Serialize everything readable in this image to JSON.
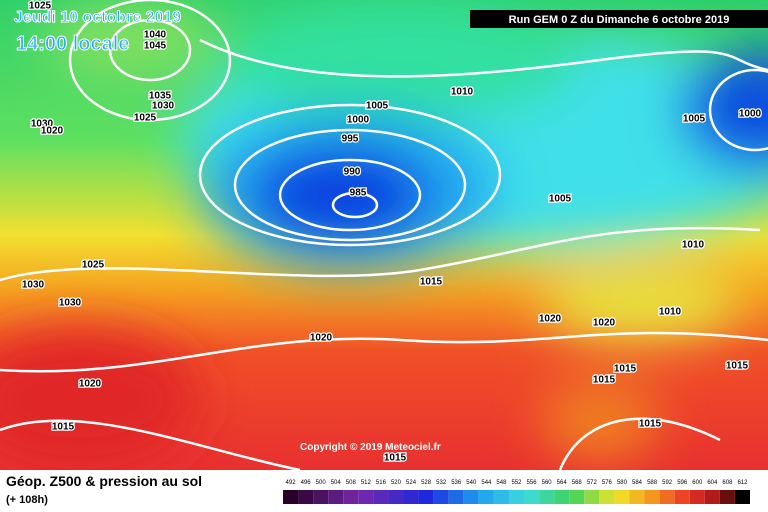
{
  "header": {
    "date": "Jeudi 10 octobre 2019",
    "time": "14:00 locale",
    "run": "Run GEM 0 Z du Dimanche 6 octobre 2019"
  },
  "copyright": "Copyright © 2019 Meteociel.fr",
  "footer": {
    "title": "Géop. Z500 & pression au sol",
    "subtitle": "(+ 108h)"
  },
  "scale_labels": [
    492,
    496,
    500,
    504,
    508,
    512,
    516,
    520,
    524,
    528,
    532,
    536,
    540,
    544,
    548,
    552,
    556,
    560,
    564,
    568,
    572,
    576,
    580,
    584,
    588,
    592,
    596,
    600,
    604,
    608,
    612
  ],
  "isobar_labels": [
    1025,
    1040,
    1045,
    1035,
    1030,
    1025,
    1030,
    1020,
    1005,
    1000,
    995,
    990,
    985,
    1010,
    1005,
    1000,
    1005,
    1010,
    1025,
    1030,
    1030,
    1015,
    1020,
    1020,
    1010,
    1020,
    1015,
    1015,
    1015,
    1020,
    1015,
    1015,
    1015
  ]
}
